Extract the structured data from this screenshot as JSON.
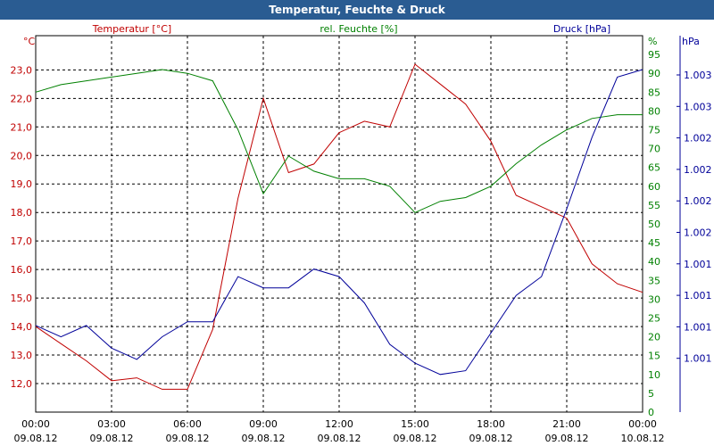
{
  "window": {
    "title": "Temperatur, Feuchte & Druck"
  },
  "colors": {
    "temperature": "#c00000",
    "humidity": "#008000",
    "pressure": "#000099",
    "titlebar": "#2a5c92"
  },
  "chart_data": {
    "type": "line",
    "title": "Temperatur, Feuchte & Druck",
    "grid": true,
    "x_ticks": [
      {
        "time": "00:00",
        "date": "09.08.12"
      },
      {
        "time": "03:00",
        "date": "09.08.12"
      },
      {
        "time": "06:00",
        "date": "09.08.12"
      },
      {
        "time": "09:00",
        "date": "09.08.12"
      },
      {
        "time": "12:00",
        "date": "09.08.12"
      },
      {
        "time": "15:00",
        "date": "09.08.12"
      },
      {
        "time": "18:00",
        "date": "09.08.12"
      },
      {
        "time": "21:00",
        "date": "09.08.12"
      },
      {
        "time": "00:00",
        "date": "10.08.12"
      }
    ],
    "x_hours": [
      0,
      1,
      2,
      3,
      4,
      5,
      6,
      7,
      8,
      9,
      10,
      11,
      12,
      13,
      14,
      15,
      16,
      17,
      18,
      19,
      20,
      21,
      22,
      23,
      24
    ],
    "axes": {
      "left": {
        "unit": "°C",
        "ticks": [
          "23,0",
          "22,0",
          "21,0",
          "20,0",
          "19,0",
          "18,0",
          "17,0",
          "16,0",
          "15,0",
          "14,0",
          "13,0",
          "12,0"
        ],
        "ylim": [
          11.0,
          24.2
        ]
      },
      "right1": {
        "unit": "%",
        "ticks": [
          "95",
          "90",
          "85",
          "80",
          "75",
          "70",
          "65",
          "60",
          "55",
          "50",
          "45",
          "40",
          "35",
          "30",
          "25",
          "20",
          "15",
          "10",
          "5",
          "0"
        ],
        "ylim": [
          0,
          100
        ]
      },
      "right2": {
        "unit": "hPa",
        "ticks": [
          "1.003",
          "1.003",
          "1.002",
          "1.002",
          "1.002",
          "1.002",
          "1.001",
          "1.001",
          "1.001",
          "1.001"
        ]
      }
    },
    "series": [
      {
        "name": "Temperatur [°C]",
        "axis": "left",
        "values": [
          14.0,
          13.4,
          12.8,
          12.1,
          12.2,
          11.8,
          11.8,
          13.9,
          18.5,
          22.0,
          19.4,
          19.7,
          20.8,
          21.2,
          21.0,
          23.2,
          22.5,
          21.8,
          20.5,
          18.6,
          18.2,
          17.8,
          16.2,
          15.5,
          15.2
        ]
      },
      {
        "name": "rel. Feuchte [%]",
        "axis": "right1",
        "values": [
          85,
          87,
          88,
          89,
          90,
          91,
          90,
          88,
          75,
          58,
          68,
          64,
          62,
          62,
          60,
          53,
          56,
          57,
          60,
          66,
          71,
          75,
          78,
          79,
          79
        ]
      },
      {
        "name": "Druck [hPa]",
        "axis": "right2",
        "values": [
          23,
          20,
          23,
          17,
          14,
          20,
          24,
          24,
          36,
          33,
          33,
          38,
          36,
          29,
          18,
          13,
          10,
          11,
          21,
          31,
          36,
          54,
          73,
          89,
          91
        ]
      }
    ]
  }
}
